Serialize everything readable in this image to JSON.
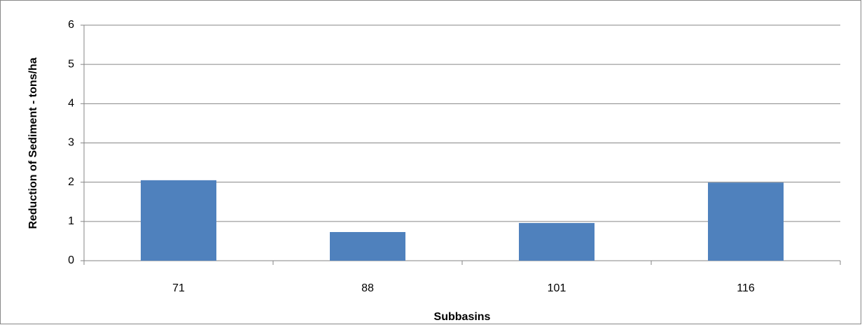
{
  "chart_data": {
    "type": "bar",
    "x_label": "Subbasins",
    "y_label": "Reduction of Sediment - tons/ha",
    "categories": [
      "71",
      "88",
      "101",
      "116"
    ],
    "values": [
      2.05,
      0.73,
      0.96,
      1.99
    ],
    "color": "#4f81bd",
    "ylim": [
      0,
      6
    ],
    "yticks": [
      0,
      1,
      2,
      3,
      4,
      5,
      6
    ],
    "grid": true
  }
}
